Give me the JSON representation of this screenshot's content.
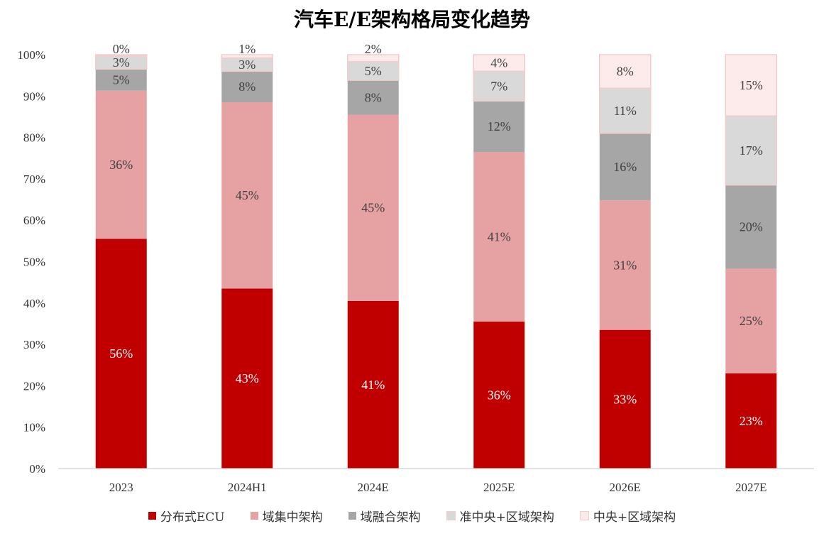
{
  "chart_data": {
    "type": "bar",
    "stacked": true,
    "title": "汽车E/E架构格局变化趋势",
    "categories": [
      "2023",
      "2024H1",
      "2024E",
      "2025E",
      "2026E",
      "2027E"
    ],
    "ylim": [
      0,
      100
    ],
    "yticks": [
      "0%",
      "10%",
      "20%",
      "30%",
      "40%",
      "50%",
      "60%",
      "70%",
      "80%",
      "90%",
      "100%"
    ],
    "legend_position": "bottom",
    "grid": false,
    "series": [
      {
        "name": "分布式ECU",
        "color": "#c00000",
        "values": [
          55.5,
          43.5,
          40.5,
          35.5,
          33.5,
          23
        ],
        "labels": [
          "56%",
          "43%",
          "41%",
          "36%",
          "33%",
          "23%"
        ]
      },
      {
        "name": "域集中架构",
        "color": "#e6a1a3",
        "values": [
          35.8,
          45,
          45,
          41,
          31.3,
          25.3
        ],
        "labels": [
          "36%",
          "45%",
          "45%",
          "41%",
          "31%",
          "25%"
        ]
      },
      {
        "name": "域融合架构",
        "color": "#a6a6a6",
        "values": [
          5.2,
          7.5,
          8.3,
          12.3,
          16.2,
          20.2
        ],
        "labels": [
          "5%",
          "8%",
          "8%",
          "12%",
          "16%",
          "20%"
        ]
      },
      {
        "name": "准中央+区域架构",
        "color": "#d9d9d9",
        "values": [
          3.2,
          3.2,
          4.5,
          7.2,
          10.9,
          16.7
        ],
        "labels": [
          "3%",
          "3%",
          "5%",
          "7%",
          "11%",
          "17%"
        ]
      },
      {
        "name": "中央+区域架构",
        "color": "#fdeaea",
        "values": [
          0.3,
          0.8,
          1.7,
          4,
          8.1,
          14.8
        ],
        "labels": [
          "0%",
          "1%",
          "2%",
          "4%",
          "8%",
          "15%"
        ]
      }
    ]
  }
}
